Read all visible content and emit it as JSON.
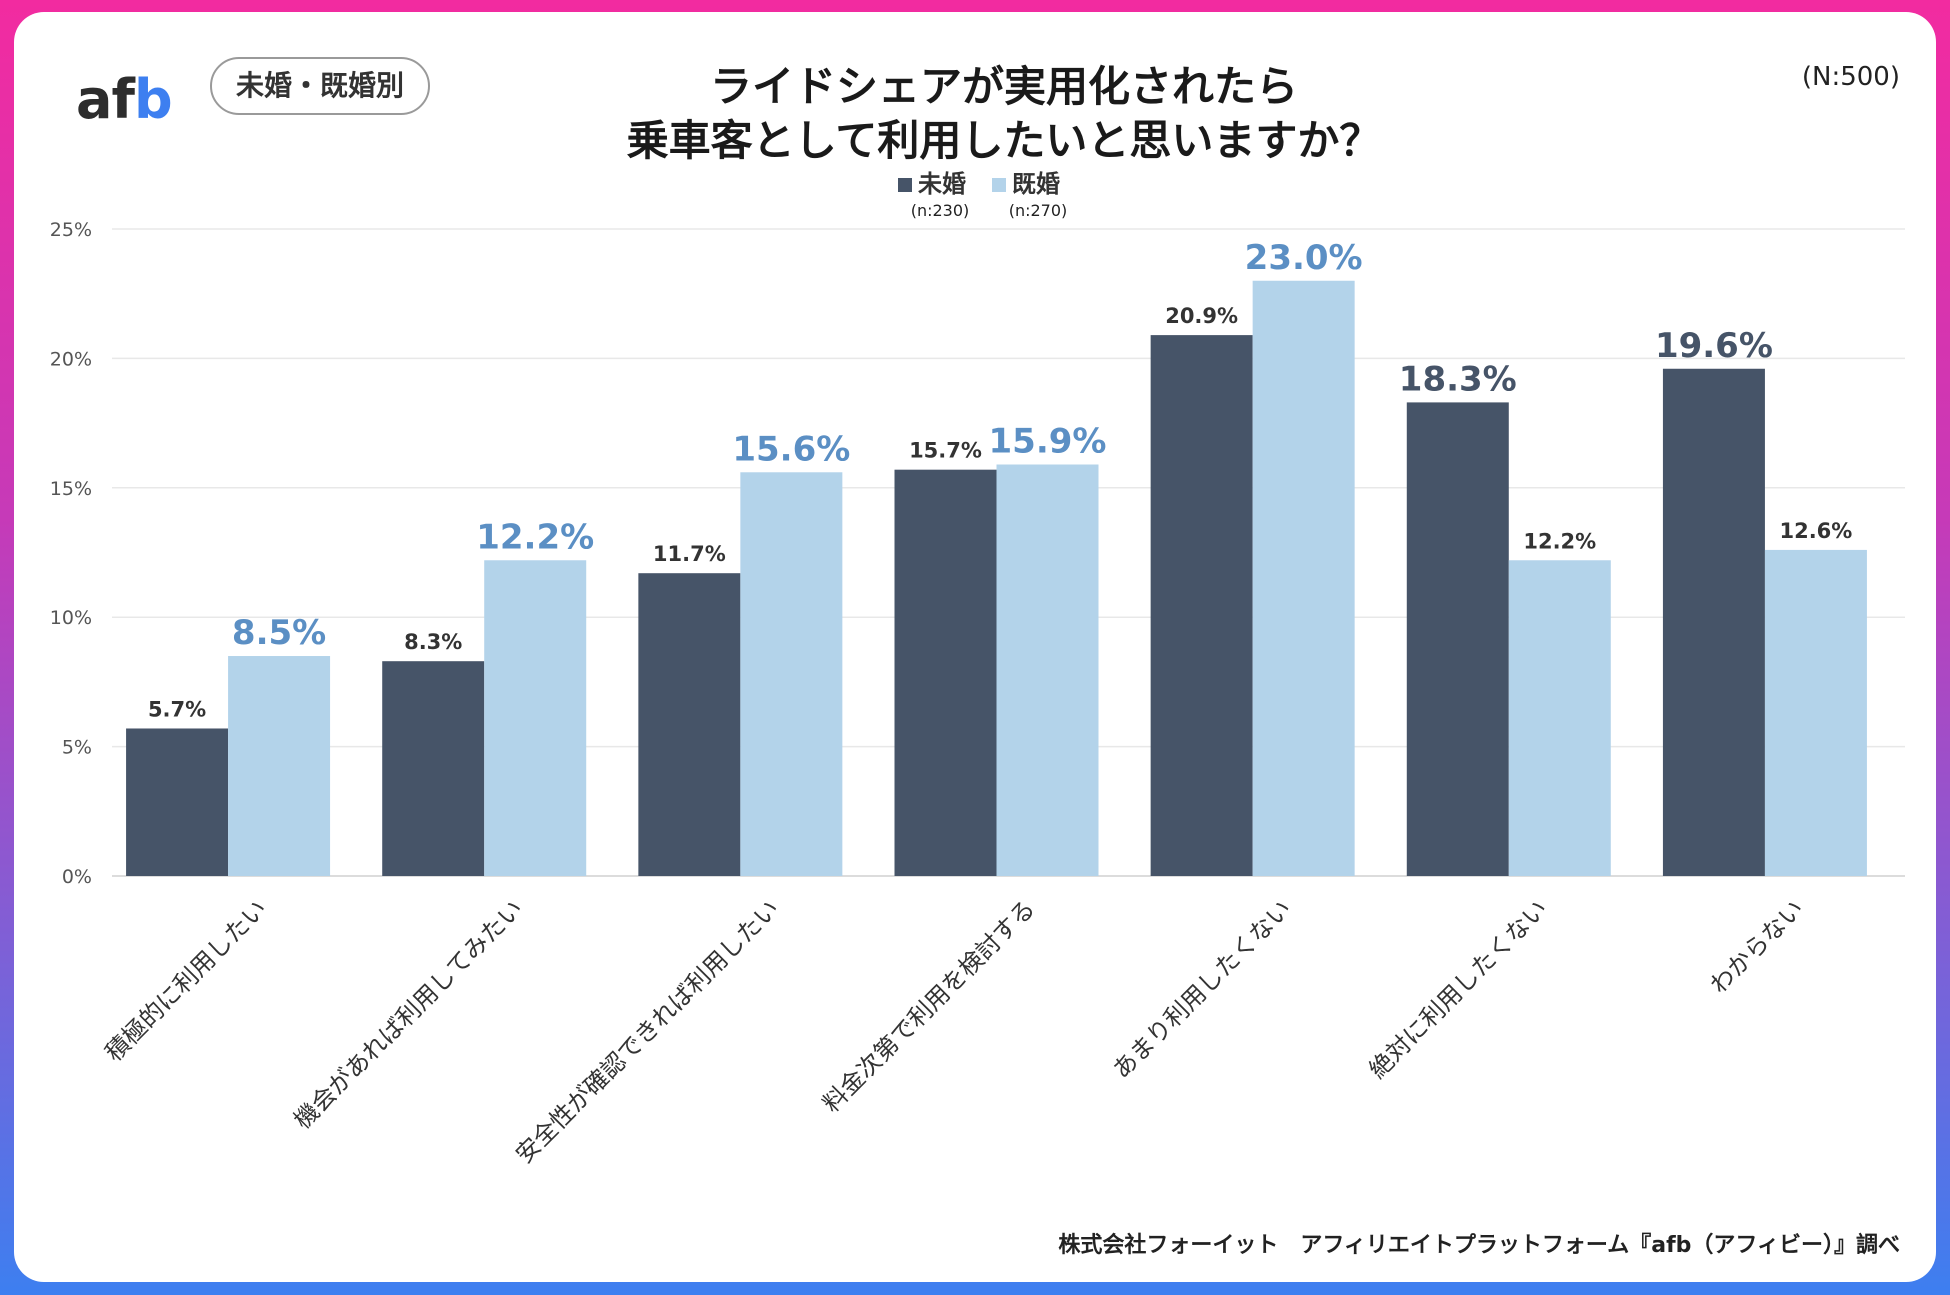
{
  "logo": {
    "text_a": "af",
    "text_b": "b"
  },
  "badge": "未婚・既婚別",
  "title_line1": "ライドシェアが実用化されたら",
  "title_line2": "乗車客として利用したいと思いますか？",
  "sample": "(N:500)",
  "footer": "株式会社フォーイット　アフィリエイトプラットフォーム『afb（アフィビー）』調べ",
  "colors": {
    "unmarried": "#465468",
    "married": "#b3d3ea",
    "highlight_light": "#5b8fc4"
  },
  "chart_data": {
    "type": "bar",
    "title": "ライドシェアが実用化されたら乗車客として利用したいと思いますか？",
    "categories": [
      "積極的に利用したい",
      "機会があれば利用してみたい",
      "安全性が確認できれば利用したい",
      "料金次第で利用を検討する",
      "あまり利用したくない",
      "絶対に利用したくない",
      "わからない"
    ],
    "series": [
      {
        "name": "未婚",
        "n": "(n:230)",
        "values": [
          5.7,
          8.3,
          11.7,
          15.7,
          20.9,
          18.3,
          19.6
        ],
        "labels": [
          "5.7%",
          "8.3%",
          "11.7%",
          "15.7%",
          "20.9%",
          "18.3%",
          "19.6%"
        ],
        "emphasized": [
          false,
          false,
          false,
          false,
          false,
          true,
          true
        ]
      },
      {
        "name": "既婚",
        "n": "(n:270)",
        "values": [
          8.5,
          12.2,
          15.6,
          15.9,
          23.0,
          12.2,
          12.6
        ],
        "labels": [
          "8.5%",
          "12.2%",
          "15.6%",
          "15.9%",
          "23.0%",
          "12.2%",
          "12.6%"
        ],
        "emphasized": [
          true,
          true,
          true,
          true,
          true,
          false,
          false
        ]
      }
    ],
    "yticks": [
      "0%",
      "5%",
      "10%",
      "15%",
      "20%",
      "25%"
    ],
    "ylim": [
      0,
      25
    ],
    "legend": "top-center",
    "grid": true
  }
}
